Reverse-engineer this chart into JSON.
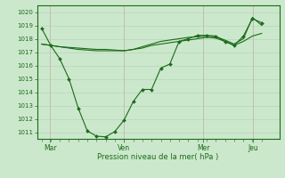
{
  "background_color": "#cce8cc",
  "grid_color": "#b8d4b8",
  "line_color": "#1a6b1a",
  "text_color": "#1a6b1a",
  "xlabel": "Pression niveau de la mer( hPa )",
  "ylim": [
    1010.5,
    1020.5
  ],
  "yticks": [
    1011,
    1012,
    1013,
    1014,
    1015,
    1016,
    1017,
    1018,
    1019,
    1020
  ],
  "xtick_labels": [
    "Mar",
    "Ven",
    "Mer",
    "Jeu"
  ],
  "xtick_positions": [
    0.04,
    0.375,
    0.735,
    0.96
  ],
  "xlim": [
    -0.02,
    1.08
  ],
  "series1_x": [
    0.0,
    0.042,
    0.083,
    0.125,
    0.167,
    0.208,
    0.25,
    0.292,
    0.333,
    0.375,
    0.417,
    0.458,
    0.5,
    0.542,
    0.583,
    0.625,
    0.667,
    0.708,
    0.75,
    0.792,
    0.833,
    0.875,
    0.917,
    0.958,
    1.0
  ],
  "series1_y": [
    1018.8,
    1017.5,
    1016.5,
    1015.0,
    1012.8,
    1011.1,
    1010.7,
    1010.65,
    1011.05,
    1011.9,
    1013.3,
    1014.2,
    1014.2,
    1015.8,
    1016.1,
    1017.8,
    1018.0,
    1018.25,
    1018.25,
    1018.2,
    1017.8,
    1017.5,
    1018.2,
    1019.5,
    1019.2
  ],
  "series2_x": [
    0.0,
    0.042,
    0.083,
    0.125,
    0.167,
    0.208,
    0.25,
    0.292,
    0.333,
    0.375,
    0.417,
    0.458,
    0.5,
    0.542,
    0.583,
    0.625,
    0.667,
    0.708,
    0.75,
    0.792,
    0.833,
    0.875,
    0.917,
    0.958,
    1.0
  ],
  "series2_y": [
    1017.6,
    1017.5,
    1017.4,
    1017.3,
    1017.2,
    1017.15,
    1017.1,
    1017.1,
    1017.1,
    1017.1,
    1017.2,
    1017.3,
    1017.5,
    1017.6,
    1017.7,
    1017.8,
    1017.9,
    1018.0,
    1018.1,
    1018.05,
    1017.8,
    1017.5,
    1017.8,
    1018.2,
    1018.4
  ],
  "series3_x": [
    0.0,
    0.042,
    0.083,
    0.125,
    0.167,
    0.208,
    0.25,
    0.292,
    0.333,
    0.375,
    0.417,
    0.458,
    0.5,
    0.542,
    0.583,
    0.625,
    0.667,
    0.708,
    0.75,
    0.792,
    0.833,
    0.875,
    0.917,
    0.958,
    1.0
  ],
  "series3_y": [
    1017.6,
    1017.5,
    1017.4,
    1017.35,
    1017.3,
    1017.25,
    1017.2,
    1017.2,
    1017.15,
    1017.1,
    1017.2,
    1017.4,
    1017.6,
    1017.8,
    1017.9,
    1018.0,
    1018.1,
    1018.15,
    1018.2,
    1018.15,
    1017.9,
    1017.6,
    1018.0,
    1019.6,
    1019.0
  ],
  "vline_positions": [
    0.04,
    0.375,
    0.735,
    0.96
  ],
  "minor_xtick_positions": [
    0.0,
    0.042,
    0.083,
    0.125,
    0.167,
    0.208,
    0.25,
    0.292,
    0.333,
    0.375,
    0.417,
    0.458,
    0.5,
    0.542,
    0.583,
    0.625,
    0.667,
    0.708,
    0.75,
    0.792,
    0.833,
    0.875,
    0.917,
    0.958,
    1.0
  ]
}
